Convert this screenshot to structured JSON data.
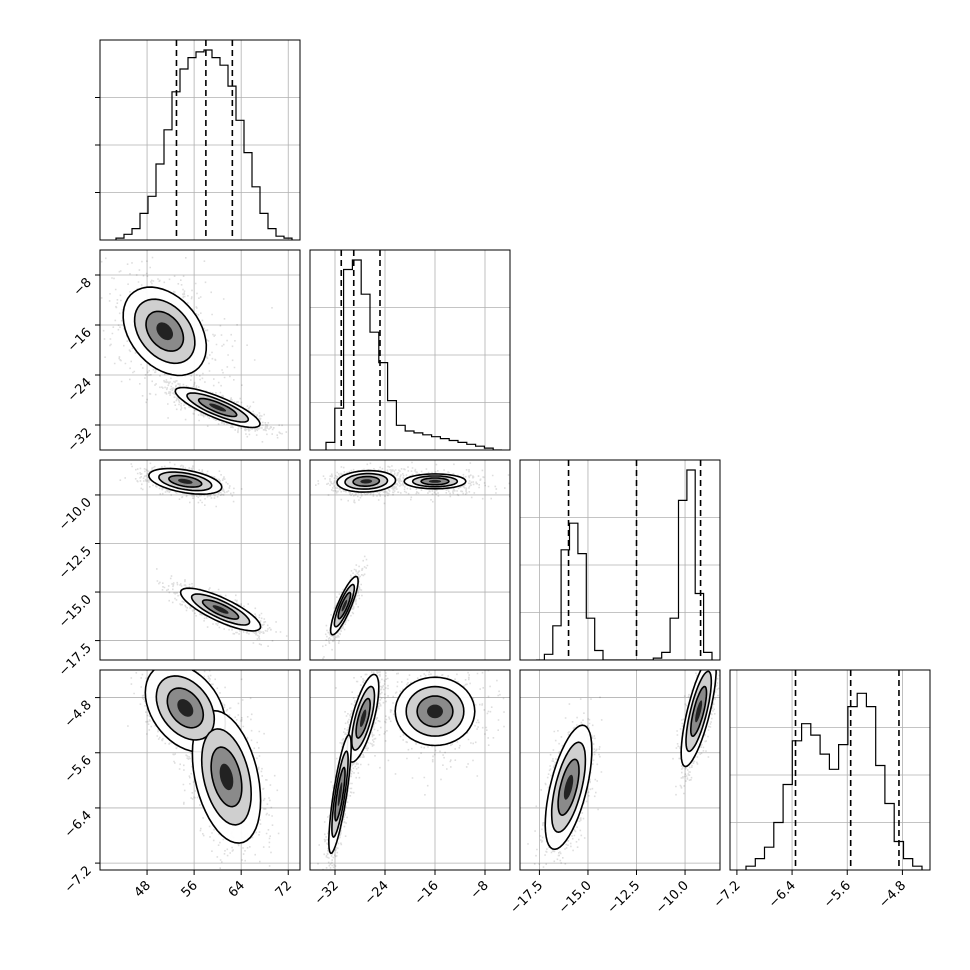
{
  "chart_data": {
    "type": "corner",
    "title": "",
    "grid": true,
    "parameters": [
      {
        "id": "p1",
        "range": [
          40,
          74
        ],
        "ticks": [
          "48",
          "56",
          "64",
          "72"
        ],
        "tick_values": [
          48,
          56,
          64,
          72
        ],
        "quantiles": [
          53,
          58,
          62.5
        ],
        "hist_bins": [
          0.01,
          0.03,
          0.06,
          0.14,
          0.23,
          0.4,
          0.58,
          0.78,
          0.9,
          0.96,
          0.99,
          1.0,
          0.96,
          0.92,
          0.81,
          0.63,
          0.46,
          0.28,
          0.14,
          0.06,
          0.02,
          0.01
        ]
      },
      {
        "id": "p2",
        "range": [
          -36,
          -4
        ],
        "ticks": [
          "−8",
          "−16",
          "−24",
          "−32"
        ],
        "tick_values": [
          -8,
          -16,
          -24,
          -32
        ],
        "x_ticks": [
          "−32",
          "−24",
          "−16",
          "−8"
        ],
        "quantiles": [
          -31,
          -29,
          -24.8
        ],
        "hist_bins": [
          0.04,
          0.22,
          0.95,
          1.0,
          0.82,
          0.62,
          0.46,
          0.26,
          0.13,
          0.1,
          0.09,
          0.08,
          0.07,
          0.06,
          0.05,
          0.04,
          0.03,
          0.02,
          0.01,
          0.0
        ]
      },
      {
        "id": "p3",
        "range": [
          -18.5,
          -8.2
        ],
        "ticks": [
          "−10.0",
          "−12.5",
          "−15.0",
          "−17.5"
        ],
        "tick_values": [
          -10.0,
          -12.5,
          -15.0,
          -17.5
        ],
        "x_ticks": [
          "−17.5",
          "−15.0",
          "−12.5",
          "−10.0"
        ],
        "quantiles": [
          -16.0,
          -12.5,
          -9.2
        ],
        "hist_bins": [
          0.0,
          0.03,
          0.18,
          0.58,
          0.72,
          0.56,
          0.22,
          0.05,
          0.0,
          0.0,
          0.0,
          0.0,
          0.0,
          0.0,
          0.01,
          0.04,
          0.22,
          0.84,
          1.0,
          0.35,
          0.04
        ]
      },
      {
        "id": "p4",
        "range": [
          -7.3,
          -4.4
        ],
        "ticks": [
          "−4.8",
          "−5.6",
          "−6.4",
          "−7.2"
        ],
        "tick_values": [
          -4.8,
          -5.6,
          -6.4,
          -7.2
        ],
        "x_ticks": [
          "−7.2",
          "−6.4",
          "−5.6",
          "−4.8"
        ],
        "quantiles": [
          -6.35,
          -5.55,
          -4.85
        ],
        "hist_bins": [
          0.02,
          0.06,
          0.12,
          0.25,
          0.45,
          0.68,
          0.77,
          0.71,
          0.61,
          0.53,
          0.66,
          0.86,
          0.93,
          0.86,
          0.55,
          0.35,
          0.15,
          0.06,
          0.02
        ]
      }
    ],
    "pairs": [
      {
        "x": "p1",
        "y": "p2",
        "clusters": [
          {
            "cx": 60,
            "cy": -29.2,
            "sx": 3.6,
            "sy": 1.6,
            "rho": -0.82,
            "w": 0.75
          },
          {
            "cx": 51,
            "cy": -17,
            "sx": 5.0,
            "sy": 5.0,
            "rho": -0.35,
            "w": 0.25
          }
        ]
      },
      {
        "x": "p1",
        "y": "p3",
        "clusters": [
          {
            "cx": 54.5,
            "cy": -9.3,
            "sx": 3.1,
            "sy": 0.33,
            "rho": -0.45,
            "w": 0.5
          },
          {
            "cx": 60.5,
            "cy": -15.9,
            "sx": 3.4,
            "sy": 0.55,
            "rho": -0.8,
            "w": 0.5
          }
        ]
      },
      {
        "x": "p2",
        "y": "p3",
        "clusters": [
          {
            "cx": -27,
            "cy": -9.3,
            "sx": 2.8,
            "sy": 0.33,
            "rho": 0.1,
            "w": 0.35
          },
          {
            "cx": -16,
            "cy": -9.3,
            "sx": 4.5,
            "sy": 0.35,
            "rho": 0.0,
            "w": 0.15
          },
          {
            "cx": -30.5,
            "cy": -15.7,
            "sx": 1.1,
            "sy": 0.75,
            "rho": 0.85,
            "w": 0.5
          }
        ]
      },
      {
        "x": "p1",
        "y": "p4",
        "clusters": [
          {
            "cx": 54.5,
            "cy": -4.95,
            "sx": 3.4,
            "sy": 0.32,
            "rho": -0.35,
            "w": 0.5
          },
          {
            "cx": 61.5,
            "cy": -5.95,
            "sx": 2.9,
            "sy": 0.48,
            "rho": -0.35,
            "w": 0.5
          }
        ]
      },
      {
        "x": "p2",
        "y": "p4",
        "clusters": [
          {
            "cx": -27.5,
            "cy": -5.1,
            "sx": 1.5,
            "sy": 0.38,
            "rho": 0.7,
            "w": 0.35
          },
          {
            "cx": -31.2,
            "cy": -6.2,
            "sx": 1.0,
            "sy": 0.48,
            "rho": 0.8,
            "w": 0.4
          },
          {
            "cx": -16,
            "cy": -5.0,
            "sx": 4.5,
            "sy": 0.35,
            "rho": 0.0,
            "w": 0.25
          }
        ]
      },
      {
        "x": "p3",
        "y": "p4",
        "clusters": [
          {
            "cx": -16.0,
            "cy": -6.1,
            "sx": 0.6,
            "sy": 0.45,
            "rho": 0.6,
            "w": 0.5
          },
          {
            "cx": -9.3,
            "cy": -5.0,
            "sx": 0.45,
            "sy": 0.4,
            "rho": 0.75,
            "w": 0.5
          }
        ]
      }
    ]
  }
}
